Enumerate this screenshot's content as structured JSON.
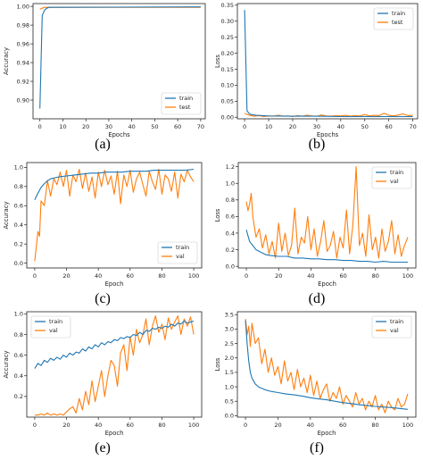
{
  "colors": {
    "train": "#1f77b4",
    "test": "#ff7f0e",
    "val": "#ff7f0e"
  },
  "captions": [
    "(a)",
    "(b)",
    "(c)",
    "(d)",
    "(e)",
    "(f)"
  ],
  "chart_data": [
    {
      "type": "line",
      "xlabel": "Epochs",
      "ylabel": "Accuracy",
      "xlim": [
        -3,
        72
      ],
      "ylim": [
        0.88,
        1.003
      ],
      "xticks": [
        0,
        10,
        20,
        30,
        40,
        50,
        60,
        70
      ],
      "yticks": [
        0.9,
        0.92,
        0.94,
        0.96,
        0.98,
        1.0
      ],
      "yticks_labels": [
        "0.90",
        "0.92",
        "0.94",
        "0.96",
        "0.98",
        "1.00"
      ],
      "legend": "bottom-right",
      "series": [
        {
          "name": "train",
          "x": [
            0,
            1,
            2,
            3,
            4,
            5,
            70
          ],
          "y": [
            0.891,
            0.99,
            0.996,
            0.998,
            0.999,
            0.999,
            0.9995
          ]
        },
        {
          "name": "test",
          "x": [
            0,
            1,
            2,
            3,
            70
          ],
          "y": [
            0.997,
            0.998,
            0.999,
            0.999,
            0.999
          ]
        }
      ]
    },
    {
      "type": "line",
      "xlabel": "Epochs",
      "ylabel": "Loss",
      "xlim": [
        -3,
        72
      ],
      "ylim": [
        -0.005,
        0.355
      ],
      "xticks": [
        0,
        10,
        20,
        30,
        40,
        50,
        60,
        70
      ],
      "yticks": [
        0.0,
        0.05,
        0.1,
        0.15,
        0.2,
        0.25,
        0.3,
        0.35
      ],
      "yticks_labels": [
        "0.00",
        "0.05",
        "0.10",
        "0.15",
        "0.20",
        "0.25",
        "0.30",
        "0.35"
      ],
      "legend": "top-right",
      "series": [
        {
          "name": "train",
          "x": [
            0,
            1,
            2,
            3,
            5,
            10,
            20,
            30,
            40,
            50,
            60,
            70
          ],
          "y": [
            0.335,
            0.02,
            0.01,
            0.008,
            0.006,
            0.004,
            0.003,
            0.003,
            0.002,
            0.002,
            0.002,
            0.002
          ]
        },
        {
          "name": "test",
          "x": [
            0,
            2,
            4,
            6,
            8,
            10,
            12,
            14,
            16,
            18,
            20,
            22,
            24,
            26,
            28,
            30,
            32,
            34,
            36,
            38,
            40,
            42,
            44,
            46,
            48,
            50,
            52,
            54,
            56,
            58,
            60,
            62,
            64,
            66,
            68,
            70
          ],
          "y": [
            0.012,
            0.006,
            0.003,
            0.005,
            0.002,
            0.004,
            0.003,
            0.006,
            0.003,
            0.004,
            0.002,
            0.005,
            0.003,
            0.006,
            0.004,
            0.003,
            0.007,
            0.004,
            0.003,
            0.005,
            0.004,
            0.006,
            0.003,
            0.005,
            0.004,
            0.008,
            0.004,
            0.006,
            0.005,
            0.012,
            0.006,
            0.004,
            0.007,
            0.01,
            0.005,
            0.006
          ]
        }
      ]
    },
    {
      "type": "line",
      "xlabel": "Epoch",
      "ylabel": "Accuracy",
      "xlim": [
        -5,
        105
      ],
      "ylim": [
        -0.05,
        1.05
      ],
      "xticks": [
        0,
        20,
        40,
        60,
        80,
        100
      ],
      "yticks": [
        0,
        0.2,
        0.4,
        0.6,
        0.8,
        1.0
      ],
      "yticks_labels": [
        "0.0",
        "0.2",
        "0.4",
        "0.6",
        "0.8",
        "1.0"
      ],
      "legend": "bottom-right",
      "series": [
        {
          "name": "train",
          "x": [
            0,
            2,
            4,
            6,
            8,
            10,
            15,
            20,
            25,
            30,
            35,
            40,
            45,
            50,
            55,
            60,
            65,
            70,
            75,
            80,
            85,
            90,
            95,
            100
          ],
          "y": [
            0.66,
            0.73,
            0.79,
            0.83,
            0.86,
            0.88,
            0.9,
            0.91,
            0.92,
            0.93,
            0.94,
            0.94,
            0.95,
            0.95,
            0.95,
            0.96,
            0.96,
            0.96,
            0.97,
            0.97,
            0.97,
            0.97,
            0.97,
            0.98
          ]
        },
        {
          "name": "val",
          "x": [
            0,
            2,
            3,
            4,
            6,
            8,
            10,
            12,
            14,
            16,
            18,
            20,
            22,
            24,
            26,
            28,
            30,
            32,
            34,
            36,
            38,
            40,
            42,
            44,
            46,
            48,
            50,
            52,
            54,
            56,
            58,
            60,
            62,
            64,
            66,
            68,
            70,
            72,
            74,
            76,
            78,
            80,
            82,
            84,
            86,
            88,
            90,
            92,
            94,
            96,
            98,
            100
          ],
          "y": [
            0.02,
            0.33,
            0.28,
            0.65,
            0.6,
            0.86,
            0.7,
            0.88,
            0.82,
            0.95,
            0.8,
            0.97,
            0.7,
            0.92,
            0.85,
            0.98,
            0.78,
            0.94,
            0.75,
            0.9,
            0.68,
            0.95,
            0.8,
            0.97,
            0.82,
            0.91,
            0.72,
            0.96,
            0.62,
            0.92,
            0.8,
            0.97,
            0.74,
            0.88,
            0.95,
            0.82,
            0.7,
            0.96,
            0.85,
            0.77,
            0.98,
            0.72,
            0.92,
            0.88,
            0.75,
            0.95,
            0.68,
            0.93,
            0.85,
            0.97,
            0.9,
            0.85
          ]
        }
      ]
    },
    {
      "type": "line",
      "xlabel": "Epoch",
      "ylabel": "Loss",
      "xlim": [
        -5,
        105
      ],
      "ylim": [
        -0.02,
        1.25
      ],
      "xticks": [
        0,
        20,
        40,
        60,
        80,
        100
      ],
      "yticks": [
        0,
        0.2,
        0.4,
        0.6,
        0.8,
        1.0,
        1.2
      ],
      "yticks_labels": [
        "0.0",
        "0.2",
        "0.4",
        "0.6",
        "0.8",
        "1.0",
        "1.2"
      ],
      "legend": "top-right",
      "series": [
        {
          "name": "train",
          "x": [
            0,
            2,
            4,
            6,
            8,
            10,
            12,
            15,
            20,
            25,
            30,
            35,
            40,
            45,
            50,
            55,
            60,
            65,
            70,
            75,
            80,
            85,
            90,
            95,
            100
          ],
          "y": [
            0.44,
            0.3,
            0.25,
            0.2,
            0.18,
            0.16,
            0.14,
            0.13,
            0.12,
            0.12,
            0.1,
            0.1,
            0.09,
            0.09,
            0.08,
            0.08,
            0.07,
            0.07,
            0.06,
            0.06,
            0.05,
            0.06,
            0.05,
            0.05,
            0.05
          ]
        },
        {
          "name": "val",
          "x": [
            0,
            1,
            2,
            3,
            4,
            6,
            8,
            10,
            12,
            14,
            16,
            18,
            20,
            22,
            24,
            26,
            28,
            30,
            32,
            34,
            36,
            38,
            40,
            42,
            44,
            46,
            48,
            50,
            52,
            54,
            56,
            58,
            60,
            62,
            64,
            66,
            68,
            70,
            72,
            74,
            76,
            78,
            80,
            82,
            84,
            86,
            88,
            90,
            92,
            94,
            96,
            98,
            100
          ],
          "y": [
            0.78,
            0.67,
            0.75,
            0.88,
            0.6,
            0.35,
            0.45,
            0.22,
            0.38,
            0.15,
            0.3,
            0.1,
            0.52,
            0.18,
            0.4,
            0.13,
            0.25,
            0.7,
            0.15,
            0.35,
            0.28,
            0.6,
            0.2,
            0.45,
            0.12,
            0.3,
            0.55,
            0.18,
            0.25,
            0.42,
            0.1,
            0.35,
            0.22,
            0.68,
            0.15,
            0.5,
            1.2,
            0.25,
            0.4,
            0.12,
            0.62,
            0.2,
            0.35,
            0.1,
            0.45,
            0.18,
            0.3,
            0.55,
            0.15,
            0.38,
            0.12,
            0.25,
            0.35
          ]
        }
      ]
    },
    {
      "type": "line",
      "xlabel": "Epoch",
      "ylabel": "Accuracy",
      "xlim": [
        -5,
        105
      ],
      "ylim": [
        0.0,
        1.02
      ],
      "xticks": [
        0,
        20,
        40,
        60,
        80,
        100
      ],
      "yticks": [
        0.2,
        0.4,
        0.6,
        0.8,
        1.0
      ],
      "yticks_labels": [
        "0.2",
        "0.4",
        "0.6",
        "0.8",
        "1.0"
      ],
      "legend": "top-left",
      "series": [
        {
          "name": "train",
          "x": [
            0,
            2,
            4,
            6,
            8,
            10,
            12,
            14,
            16,
            18,
            20,
            22,
            24,
            26,
            28,
            30,
            32,
            34,
            36,
            38,
            40,
            42,
            44,
            46,
            48,
            50,
            52,
            54,
            56,
            58,
            60,
            62,
            64,
            66,
            68,
            70,
            72,
            74,
            76,
            78,
            80,
            82,
            84,
            86,
            88,
            90,
            92,
            94,
            96,
            98,
            100
          ],
          "y": [
            0.47,
            0.52,
            0.5,
            0.55,
            0.53,
            0.57,
            0.55,
            0.58,
            0.56,
            0.6,
            0.58,
            0.62,
            0.6,
            0.63,
            0.62,
            0.66,
            0.64,
            0.68,
            0.66,
            0.7,
            0.68,
            0.72,
            0.7,
            0.73,
            0.72,
            0.75,
            0.74,
            0.77,
            0.76,
            0.78,
            0.77,
            0.8,
            0.79,
            0.82,
            0.8,
            0.84,
            0.83,
            0.86,
            0.85,
            0.87,
            0.86,
            0.88,
            0.87,
            0.9,
            0.88,
            0.91,
            0.9,
            0.93,
            0.91,
            0.92,
            0.93
          ]
        },
        {
          "name": "val",
          "x": [
            0,
            2,
            4,
            6,
            8,
            10,
            12,
            14,
            16,
            18,
            20,
            22,
            24,
            26,
            28,
            30,
            32,
            34,
            36,
            38,
            40,
            42,
            44,
            46,
            48,
            50,
            52,
            54,
            56,
            58,
            60,
            62,
            64,
            66,
            68,
            70,
            72,
            74,
            76,
            78,
            80,
            82,
            84,
            86,
            88,
            90,
            92,
            94,
            96,
            98,
            100
          ],
          "y": [
            0.02,
            0.02,
            0.03,
            0.02,
            0.04,
            0.02,
            0.03,
            0.02,
            0.03,
            0.02,
            0.05,
            0.08,
            0.1,
            0.04,
            0.18,
            0.07,
            0.25,
            0.12,
            0.35,
            0.15,
            0.3,
            0.45,
            0.2,
            0.4,
            0.55,
            0.5,
            0.3,
            0.62,
            0.7,
            0.45,
            0.78,
            0.6,
            0.85,
            0.72,
            0.8,
            0.95,
            0.7,
            0.88,
            0.98,
            0.82,
            0.9,
            0.75,
            0.96,
            0.85,
            0.92,
            0.98,
            0.8,
            0.95,
            0.88,
            0.97,
            0.8
          ]
        }
      ]
    },
    {
      "type": "line",
      "xlabel": "Epoch",
      "ylabel": "Loss",
      "xlim": [
        -5,
        105
      ],
      "ylim": [
        -0.05,
        3.6
      ],
      "xticks": [
        0,
        20,
        40,
        60,
        80,
        100
      ],
      "yticks": [
        0.0,
        0.5,
        1.0,
        1.5,
        2.0,
        2.5,
        3.0,
        3.5
      ],
      "yticks_labels": [
        "0.0",
        "0.5",
        "1.0",
        "1.5",
        "2.0",
        "2.5",
        "3.0",
        "3.5"
      ],
      "legend": "top-right",
      "series": [
        {
          "name": "train",
          "x": [
            0,
            1,
            2,
            3,
            4,
            6,
            8,
            10,
            12,
            15,
            20,
            25,
            30,
            35,
            40,
            45,
            50,
            55,
            60,
            65,
            70,
            75,
            80,
            85,
            90,
            95,
            100
          ],
          "y": [
            3.3,
            2.5,
            1.9,
            1.5,
            1.3,
            1.1,
            1.0,
            0.95,
            0.9,
            0.85,
            0.8,
            0.75,
            0.72,
            0.68,
            0.62,
            0.58,
            0.55,
            0.5,
            0.45,
            0.42,
            0.38,
            0.35,
            0.32,
            0.3,
            0.28,
            0.25,
            0.22
          ]
        },
        {
          "name": "val",
          "x": [
            0,
            1,
            2,
            3,
            4,
            6,
            8,
            10,
            12,
            14,
            16,
            18,
            20,
            22,
            24,
            26,
            28,
            30,
            32,
            34,
            36,
            38,
            40,
            42,
            44,
            46,
            48,
            50,
            52,
            54,
            56,
            58,
            60,
            62,
            64,
            66,
            68,
            70,
            72,
            74,
            76,
            78,
            80,
            82,
            84,
            86,
            88,
            90,
            92,
            94,
            96,
            98,
            100
          ],
          "y": [
            3.35,
            2.8,
            3.1,
            2.4,
            3.2,
            2.5,
            2.7,
            1.8,
            2.3,
            1.5,
            2.0,
            1.4,
            1.7,
            1.1,
            1.9,
            1.2,
            1.5,
            0.9,
            1.6,
            1.0,
            1.3,
            0.8,
            1.4,
            0.7,
            1.2,
            0.6,
            0.9,
            1.1,
            0.5,
            0.8,
            0.6,
            1.0,
            0.4,
            0.7,
            0.5,
            0.3,
            0.8,
            0.4,
            0.6,
            0.2,
            0.5,
            0.3,
            0.7,
            0.2,
            0.4,
            0.1,
            0.5,
            0.3,
            0.2,
            0.6,
            0.3,
            0.4,
            0.75
          ]
        }
      ]
    }
  ]
}
